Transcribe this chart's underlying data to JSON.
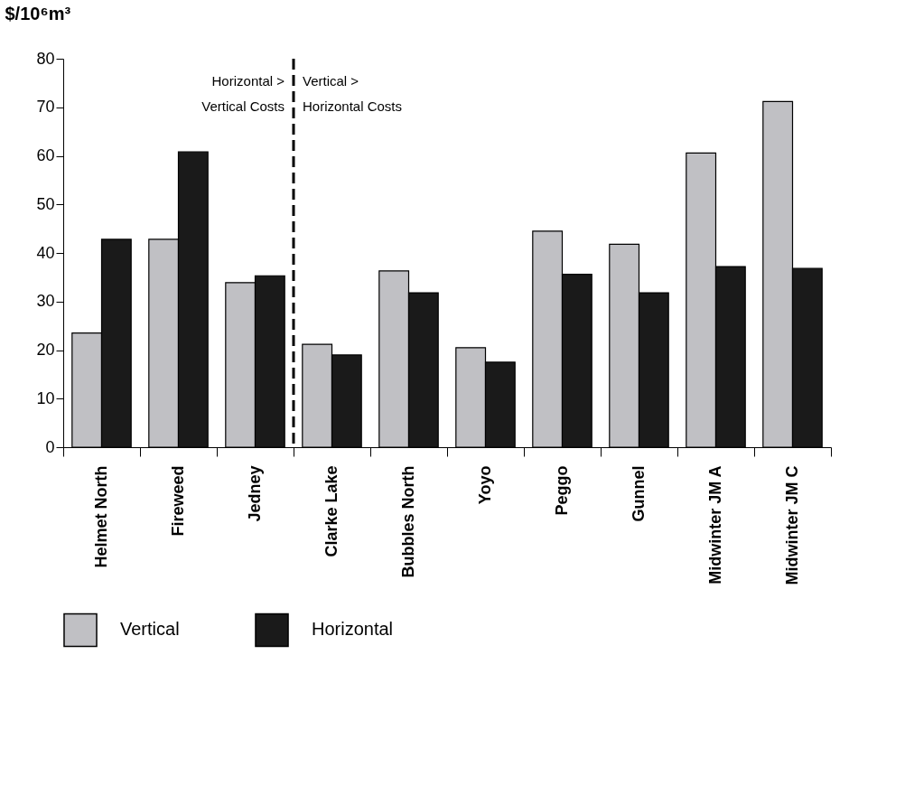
{
  "chart_data": {
    "type": "bar",
    "ylabel": "$/10⁶m³",
    "categories": [
      "Helmet North",
      "Fireweed",
      "Jedney",
      "Clarke Lake",
      "Bubbles North",
      "Yoyo",
      "Peggo",
      "Gunnel",
      "Midwinter JM A",
      "Midwinter JM C"
    ],
    "series": [
      {
        "name": "Vertical",
        "color": "#c0c0c4",
        "values": [
          23.5,
          42.8,
          33.9,
          21.2,
          36.3,
          20.5,
          44.5,
          41.8,
          60.6,
          71.2
        ]
      },
      {
        "name": "Horizontal",
        "color": "#1a1a1a",
        "values": [
          42.8,
          60.8,
          35.3,
          19.0,
          31.8,
          17.5,
          35.6,
          31.8,
          37.2,
          36.8
        ]
      }
    ],
    "ylim": [
      0,
      80
    ],
    "yticks": [
      0,
      10,
      20,
      30,
      40,
      50,
      60,
      70,
      80
    ],
    "annotations": [
      "Horizontal >\nVertical Costs",
      "Vertical >\nHorizontal Costs"
    ],
    "grid": false,
    "legend": "bottom"
  }
}
